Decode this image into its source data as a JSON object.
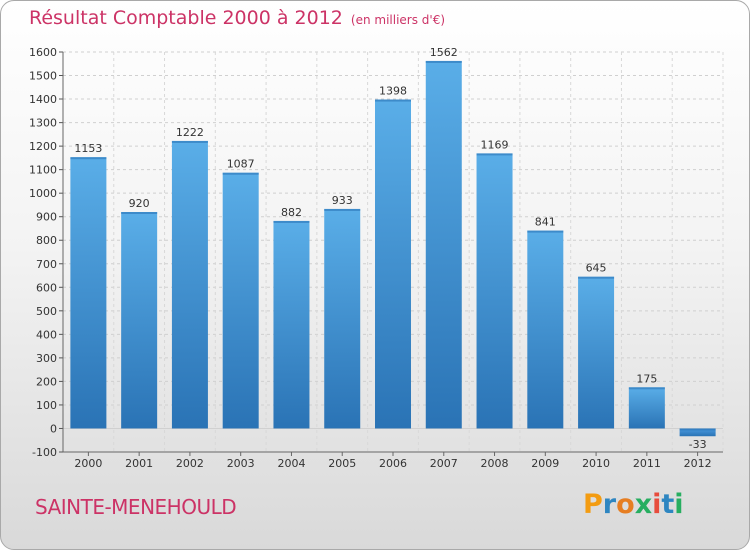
{
  "title": "Résultat Comptable 2000 à 2012",
  "subtitle": "(en milliers d'€)",
  "city": "SAINTE-MENEHOULD",
  "logo": {
    "letters": [
      "P",
      "r",
      "o",
      "x",
      "i",
      "t",
      "i"
    ],
    "colors": [
      "#f39c12",
      "#2e86c1",
      "#e67e22",
      "#27ae60",
      "#e74c3c",
      "#2e86c1",
      "#27ae60"
    ]
  },
  "colors": {
    "bar": "#4a9be0",
    "bar_dark": "#2a73b5",
    "title": "#cc3366",
    "grid": "#d0d0d0"
  },
  "chart_data": {
    "type": "bar",
    "categories": [
      "2000",
      "2001",
      "2002",
      "2003",
      "2004",
      "2005",
      "2006",
      "2007",
      "2008",
      "2009",
      "2010",
      "2011",
      "2012"
    ],
    "values": [
      1153,
      920,
      1222,
      1087,
      882,
      933,
      1398,
      1562,
      1169,
      841,
      645,
      175,
      -33
    ],
    "ylim": [
      -100,
      1600
    ],
    "yticks": [
      -100,
      0,
      100,
      200,
      300,
      400,
      500,
      600,
      700,
      800,
      900,
      1000,
      1100,
      1200,
      1300,
      1400,
      1500,
      1600
    ],
    "grid": true
  }
}
